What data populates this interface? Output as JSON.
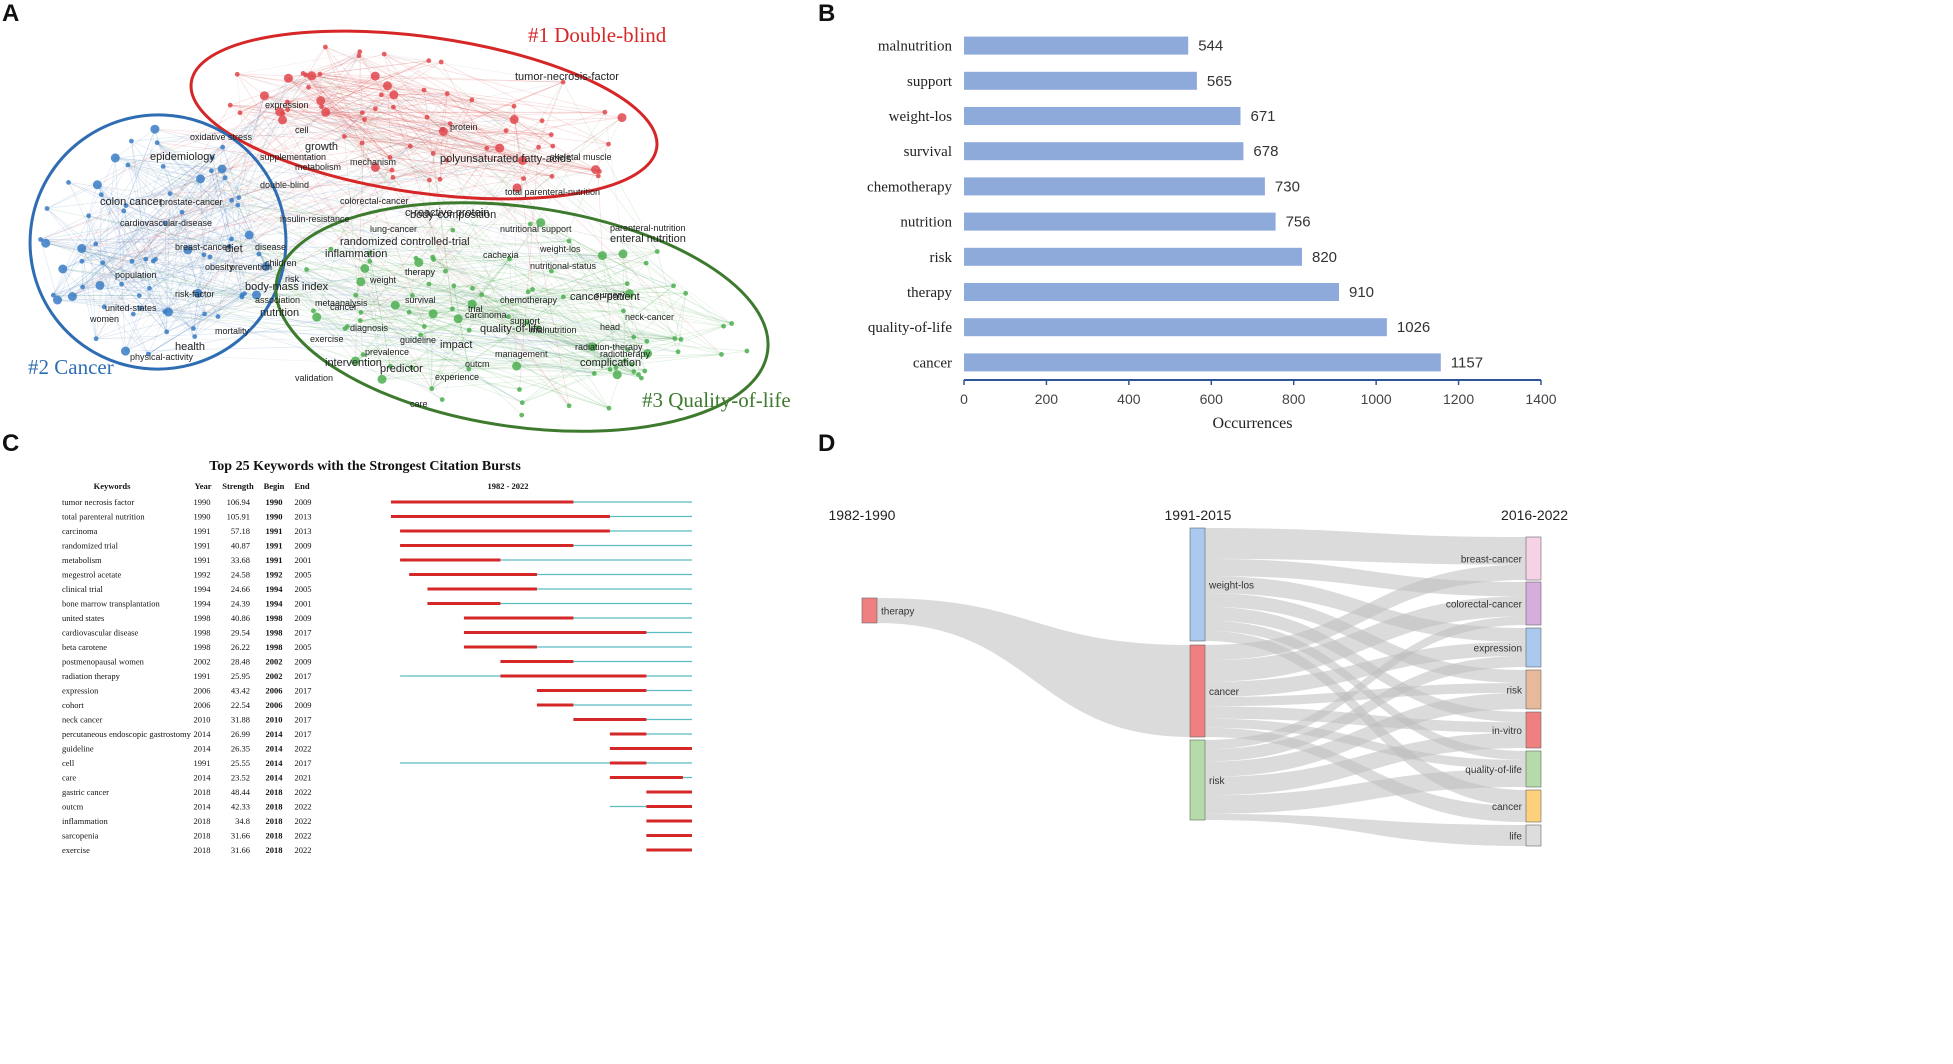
{
  "panels": {
    "a": "A",
    "b": "B",
    "c": "C",
    "d": "D"
  },
  "network": {
    "clusters": [
      {
        "label": "#1 Double-blind",
        "color": "#d62728"
      },
      {
        "label": "#2 Cancer",
        "color": "#2f6db3"
      },
      {
        "label": "#3 Quality-of-life",
        "color": "#3d7a2e"
      }
    ],
    "terms_red": [
      "tumor-necrosis-factor",
      "expression",
      "oxidative stress",
      "cell",
      "growth",
      "metabolism",
      "mechanism",
      "protein",
      "polyunsaturated fatty-acids",
      "skeletal muscle",
      "total parenteral-nutrition",
      "double-blind",
      "c-reactive protein",
      "supplementation"
    ],
    "terms_blue": [
      "colon cancer",
      "prostate-cancer",
      "cardiovascular-disease",
      "breast-cancer",
      "diet",
      "disease",
      "obesity",
      "prevention",
      "body-mass index",
      "risk",
      "risk-factor",
      "association",
      "nutrition",
      "metaanalysis",
      "mortality",
      "physical-activity",
      "health",
      "women",
      "united-states",
      "population",
      "epidemiology",
      "insulin-resistance",
      "colorectal-cancer",
      "lung-cancer",
      "inflammation",
      "cancer",
      "children"
    ],
    "terms_green": [
      "body-composition",
      "nutritional support",
      "weight-los",
      "cachexia",
      "enteral nutrition",
      "parenteral-nutrition",
      "therapy",
      "nutritional-status",
      "randomized controlled-trial",
      "survival",
      "chemotherapy",
      "carcinoma",
      "cancer-patient",
      "surgery",
      "trial",
      "support",
      "quality-of-life",
      "malnutrition",
      "diagnosis",
      "guideline",
      "impact",
      "prevalence",
      "management",
      "outcm",
      "intervention",
      "head",
      "radiation-therapy",
      "radiotherapy",
      "complication",
      "neck-cancer",
      "care",
      "validation",
      "predictor",
      "experience",
      "exercise",
      "weight"
    ]
  },
  "chart_data": [
    {
      "type": "bar",
      "orientation": "horizontal",
      "categories": [
        "malnutrition",
        "support",
        "weight-los",
        "survival",
        "chemotherapy",
        "nutrition",
        "risk",
        "therapy",
        "quality-of-life",
        "cancer"
      ],
      "values": [
        544,
        565,
        671,
        678,
        730,
        756,
        820,
        910,
        1026,
        1157
      ],
      "xlabel": "Occurrences",
      "xlim": [
        0,
        1400
      ],
      "xticks": [
        "0",
        "200",
        "400",
        "600",
        "800",
        "1000",
        "1200",
        "1400"
      ],
      "bar_color": "#8eaadb",
      "axis_color": "#2f5597"
    },
    {
      "type": "table",
      "title": "Top 25 Keywords with the Strongest Citation Bursts",
      "headers": [
        "Keywords",
        "Year",
        "Strength",
        "Begin",
        "End",
        "1982 - 2022"
      ],
      "range": [
        1982,
        2022
      ],
      "rows": [
        {
          "keyword": "tumor necrosis factor",
          "year": 1990,
          "strength": "106.94",
          "begin": 1990,
          "end": 2009
        },
        {
          "keyword": "total parenteral nutrition",
          "year": 1990,
          "strength": "105.91",
          "begin": 1990,
          "end": 2013
        },
        {
          "keyword": "carcinoma",
          "year": 1991,
          "strength": "57.18",
          "begin": 1991,
          "end": 2013
        },
        {
          "keyword": "randomized trial",
          "year": 1991,
          "strength": "40.87",
          "begin": 1991,
          "end": 2009
        },
        {
          "keyword": "metabolism",
          "year": 1991,
          "strength": "33.68",
          "begin": 1991,
          "end": 2001
        },
        {
          "keyword": "megestrol acetate",
          "year": 1992,
          "strength": "24.58",
          "begin": 1992,
          "end": 2005
        },
        {
          "keyword": "clinical trial",
          "year": 1994,
          "strength": "24.66",
          "begin": 1994,
          "end": 2005
        },
        {
          "keyword": "bone marrow transplantation",
          "year": 1994,
          "strength": "24.39",
          "begin": 1994,
          "end": 2001
        },
        {
          "keyword": "united states",
          "year": 1998,
          "strength": "40.86",
          "begin": 1998,
          "end": 2009
        },
        {
          "keyword": "cardiovascular disease",
          "year": 1998,
          "strength": "29.54",
          "begin": 1998,
          "end": 2017
        },
        {
          "keyword": "beta carotene",
          "year": 1998,
          "strength": "26.22",
          "begin": 1998,
          "end": 2005
        },
        {
          "keyword": "postmenopausal women",
          "year": 2002,
          "strength": "28.48",
          "begin": 2002,
          "end": 2009
        },
        {
          "keyword": "radiation therapy",
          "year": 1991,
          "strength": "25.95",
          "begin": 2002,
          "end": 2017
        },
        {
          "keyword": "expression",
          "year": 2006,
          "strength": "43.42",
          "begin": 2006,
          "end": 2017
        },
        {
          "keyword": "cohort",
          "year": 2006,
          "strength": "22.54",
          "begin": 2006,
          "end": 2009
        },
        {
          "keyword": "neck cancer",
          "year": 2010,
          "strength": "31.88",
          "begin": 2010,
          "end": 2017
        },
        {
          "keyword": "percutaneous endoscopic gastrostomy",
          "year": 2014,
          "strength": "26.99",
          "begin": 2014,
          "end": 2017
        },
        {
          "keyword": "guideline",
          "year": 2014,
          "strength": "26.35",
          "begin": 2014,
          "end": 2022
        },
        {
          "keyword": "cell",
          "year": 1991,
          "strength": "25.55",
          "begin": 2014,
          "end": 2017
        },
        {
          "keyword": "care",
          "year": 2014,
          "strength": "23.52",
          "begin": 2014,
          "end": 2021
        },
        {
          "keyword": "gastric cancer",
          "year": 2018,
          "strength": "48.44",
          "begin": 2018,
          "end": 2022
        },
        {
          "keyword": "outcm",
          "year": 2014,
          "strength": "42.33",
          "begin": 2018,
          "end": 2022
        },
        {
          "keyword": "inflammation",
          "year": 2018,
          "strength": "34.8",
          "begin": 2018,
          "end": 2022
        },
        {
          "keyword": "sarcopenia",
          "year": 2018,
          "strength": "31.66",
          "begin": 2018,
          "end": 2022
        },
        {
          "keyword": "exercise",
          "year": 2018,
          "strength": "31.66",
          "begin": 2018,
          "end": 2022
        }
      ],
      "burst_color": "#d62728",
      "line_color": "#5bbcc0"
    },
    {
      "type": "sankey",
      "periods": [
        "1982-1990",
        "1991-2015",
        "2016-2022"
      ],
      "nodes": [
        {
          "label": "therapy",
          "period": 0,
          "color": "#f08080"
        },
        {
          "label": "weight-los",
          "period": 1,
          "color": "#a9c9ee"
        },
        {
          "label": "cancer",
          "period": 1,
          "color": "#f08080"
        },
        {
          "label": "risk",
          "period": 1,
          "color": "#b5dba8"
        },
        {
          "label": "breast-cancer",
          "period": 2,
          "color": "#f6d2e6"
        },
        {
          "label": "colorectal-cancer",
          "period": 2,
          "color": "#d6aedd"
        },
        {
          "label": "expression",
          "period": 2,
          "color": "#a9c9ee"
        },
        {
          "label": "risk",
          "period": 2,
          "color": "#e8b89a"
        },
        {
          "label": "in-vitro",
          "period": 2,
          "color": "#f08080"
        },
        {
          "label": "quality-of-life",
          "period": 2,
          "color": "#b5dba8"
        },
        {
          "label": "cancer",
          "period": 2,
          "color": "#fdd17c"
        },
        {
          "label": "life",
          "period": 2,
          "color": "#dddddd"
        }
      ],
      "links": [
        {
          "source": 0,
          "target": 2,
          "value": 2.2
        },
        {
          "source": 1,
          "target": 4,
          "value": 0.9
        },
        {
          "source": 1,
          "target": 5,
          "value": 0.5
        },
        {
          "source": 1,
          "target": 6,
          "value": 0.5
        },
        {
          "source": 1,
          "target": 7,
          "value": 0.4
        },
        {
          "source": 1,
          "target": 8,
          "value": 0.4
        },
        {
          "source": 1,
          "target": 9,
          "value": 0.3
        },
        {
          "source": 1,
          "target": 10,
          "value": 0.3
        },
        {
          "source": 2,
          "target": 4,
          "value": 0.5
        },
        {
          "source": 2,
          "target": 5,
          "value": 0.7
        },
        {
          "source": 2,
          "target": 6,
          "value": 0.5
        },
        {
          "source": 2,
          "target": 7,
          "value": 0.3
        },
        {
          "source": 2,
          "target": 8,
          "value": 0.4
        },
        {
          "source": 2,
          "target": 9,
          "value": 0.3
        },
        {
          "source": 2,
          "target": 10,
          "value": 0.3
        },
        {
          "source": 3,
          "target": 5,
          "value": 0.3
        },
        {
          "source": 3,
          "target": 6,
          "value": 0.4
        },
        {
          "source": 3,
          "target": 7,
          "value": 0.5
        },
        {
          "source": 3,
          "target": 8,
          "value": 0.6
        },
        {
          "source": 3,
          "target": 9,
          "value": 0.6
        },
        {
          "source": 3,
          "target": 11,
          "value": 0.2
        }
      ],
      "link_color": "#bdbdbd"
    }
  ]
}
